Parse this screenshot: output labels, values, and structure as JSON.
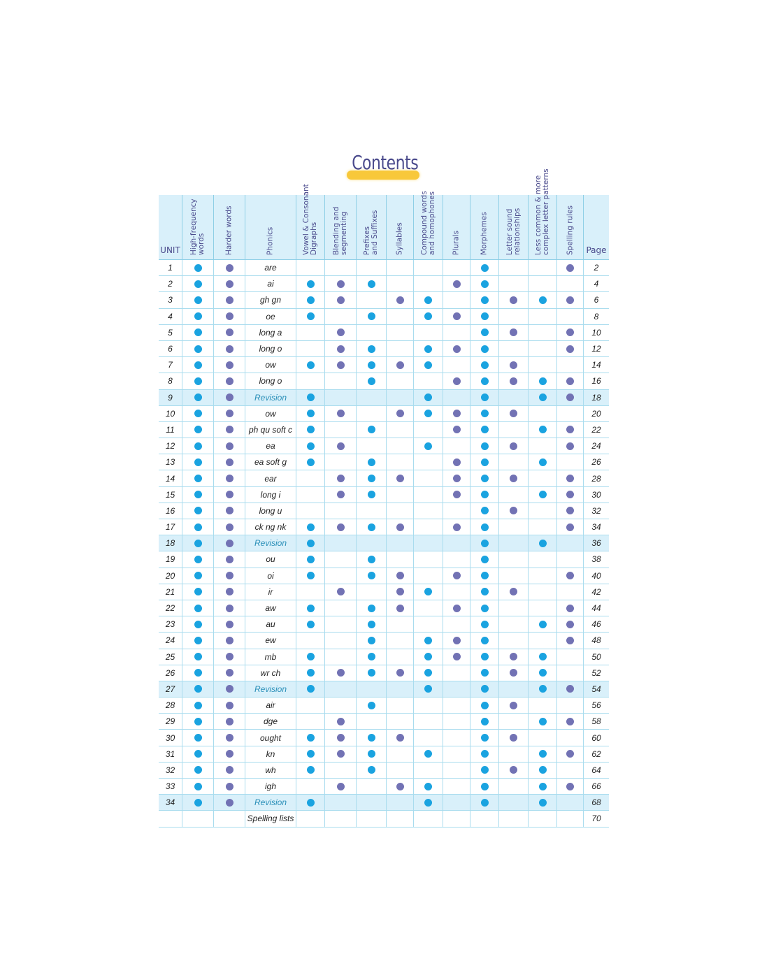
{
  "title": "Contents",
  "colors": {
    "blue_dot": "#1aa3e0",
    "purple_dot": "#7272b4",
    "header_bg": "#d9f0fa",
    "title": "#4a4a8c",
    "title_bar": "#f8c83a"
  },
  "columns": [
    "UNIT",
    "High-frequency\nwords",
    "Harder words",
    "Phonics",
    "Vowel & Consonant\nDigraphs",
    "Blending and\nsegmenting",
    "Prefixes\nand Suffixes",
    "Syllables",
    "Compound words\nand homophones",
    "Plurals",
    "Morphemes",
    "Letter sound\nrelationships",
    "Less common & more\ncomplex letter patterns",
    "Spelling rules",
    "Page"
  ],
  "dot_column_colors": [
    "blue",
    "purple",
    "blue",
    "purple",
    "blue",
    "purple",
    "blue",
    "purple",
    "blue",
    "purple",
    "blue",
    "purple"
  ],
  "rows": [
    {
      "unit": "1",
      "phonics": "are",
      "marks": "110000001001",
      "page": "2"
    },
    {
      "unit": "2",
      "phonics": "ai",
      "marks": "111110011000",
      "page": "4"
    },
    {
      "unit": "3",
      "phonics": "gh gn",
      "marks": "111101101111",
      "page": "6"
    },
    {
      "unit": "4",
      "phonics": "oe",
      "marks": "111010111000",
      "page": "8"
    },
    {
      "unit": "5",
      "phonics": "long a",
      "marks": "110100001101",
      "page": "10"
    },
    {
      "unit": "6",
      "phonics": "long o",
      "marks": "110110111001",
      "page": "12"
    },
    {
      "unit": "7",
      "phonics": "ow",
      "marks": "111111101100",
      "page": "14"
    },
    {
      "unit": "8",
      "phonics": "long o",
      "marks": "110010011111",
      "page": "16"
    },
    {
      "unit": "9",
      "phonics": "Revision",
      "marks": "111000101011",
      "page": "18",
      "revision": true
    },
    {
      "unit": "10",
      "phonics": "ow",
      "marks": "111101111100",
      "page": "20"
    },
    {
      "unit": "11",
      "phonics": "ph qu soft c",
      "marks": "111010011011",
      "page": "22"
    },
    {
      "unit": "12",
      "phonics": "ea",
      "marks": "111100101101",
      "page": "24"
    },
    {
      "unit": "13",
      "phonics": "ea soft g",
      "marks": "111010011010",
      "page": "26"
    },
    {
      "unit": "14",
      "phonics": "ear",
      "marks": "110111011101",
      "page": "28"
    },
    {
      "unit": "15",
      "phonics": "long i",
      "marks": "110110011011",
      "page": "30"
    },
    {
      "unit": "16",
      "phonics": "long u",
      "marks": "110000001101",
      "page": "32"
    },
    {
      "unit": "17",
      "phonics": "ck ng nk",
      "marks": "111111011001",
      "page": "34"
    },
    {
      "unit": "18",
      "phonics": "Revision",
      "marks": "111000001010",
      "page": "36",
      "revision": true
    },
    {
      "unit": "19",
      "phonics": "ou",
      "marks": "111010001000",
      "page": "38"
    },
    {
      "unit": "20",
      "phonics": "oi",
      "marks": "111011011001",
      "page": "40"
    },
    {
      "unit": "21",
      "phonics": "ir",
      "marks": "110101101100",
      "page": "42"
    },
    {
      "unit": "22",
      "phonics": "aw",
      "marks": "111011011001",
      "page": "44"
    },
    {
      "unit": "23",
      "phonics": "au",
      "marks": "111010001011",
      "page": "46"
    },
    {
      "unit": "24",
      "phonics": "ew",
      "marks": "110010111001",
      "page": "48"
    },
    {
      "unit": "25",
      "phonics": "mb",
      "marks": "111010111110",
      "page": "50"
    },
    {
      "unit": "26",
      "phonics": "wr ch",
      "marks": "111111101110",
      "page": "52"
    },
    {
      "unit": "27",
      "phonics": "Revision",
      "marks": "111000101011",
      "page": "54",
      "revision": true
    },
    {
      "unit": "28",
      "phonics": "air",
      "marks": "110010001100",
      "page": "56"
    },
    {
      "unit": "29",
      "phonics": "dge",
      "marks": "110100001011",
      "page": "58"
    },
    {
      "unit": "30",
      "phonics": "ought",
      "marks": "111111001100",
      "page": "60"
    },
    {
      "unit": "31",
      "phonics": "kn",
      "marks": "111110101011",
      "page": "62"
    },
    {
      "unit": "32",
      "phonics": "wh",
      "marks": "111010001110",
      "page": "64"
    },
    {
      "unit": "33",
      "phonics": "igh",
      "marks": "110101101011",
      "page": "66"
    },
    {
      "unit": "34",
      "phonics": "Revision",
      "marks": "111000101010",
      "page": "68",
      "revision": true
    },
    {
      "unit": "",
      "phonics": "Spelling lists",
      "marks": "000000000000",
      "page": "70"
    }
  ]
}
